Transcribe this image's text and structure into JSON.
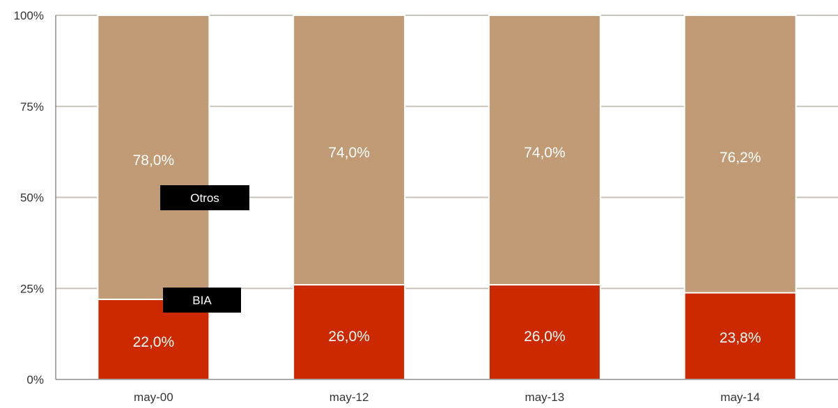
{
  "chart_data": {
    "type": "bar",
    "stacked": true,
    "percent": true,
    "categories": [
      "may-00",
      "may-12",
      "may-13",
      "may-14"
    ],
    "series": [
      {
        "name": "BIA",
        "values": [
          22.0,
          26.0,
          26.0,
          23.8
        ],
        "labels": [
          "22,0%",
          "26,0%",
          "26,0%",
          "23,8%"
        ],
        "color": "#cc2900"
      },
      {
        "name": "Otros",
        "values": [
          78.0,
          74.0,
          74.0,
          76.2
        ],
        "labels": [
          "78,0%",
          "74,0%",
          "74,0%",
          "76,2%"
        ],
        "color": "#c19b75"
      }
    ],
    "y_ticks": [
      "0%",
      "25%",
      "50%",
      "75%",
      "100%"
    ],
    "y_tick_values": [
      0,
      25,
      50,
      75,
      100
    ],
    "ylim": [
      0,
      100
    ],
    "grid": true,
    "grid_color": "#c8c3bb",
    "axis_color": "#555555",
    "label_color": "#ffffff",
    "callout_color": "#000000"
  }
}
